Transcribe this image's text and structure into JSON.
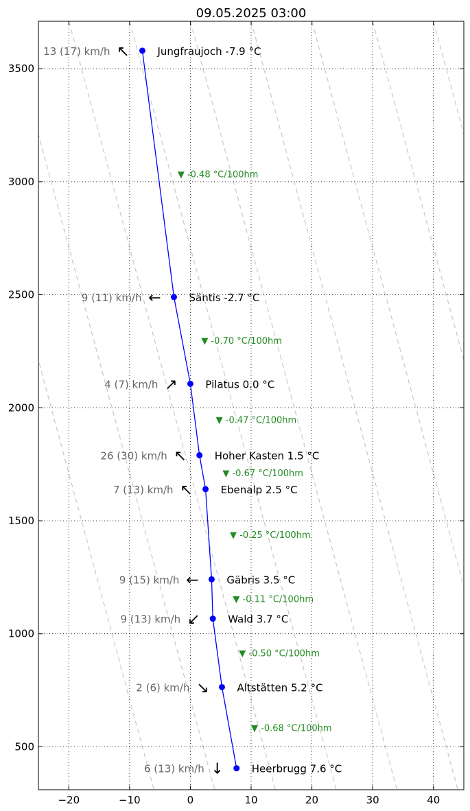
{
  "chart_data": {
    "type": "line",
    "title": "09.05.2025 03:00",
    "xlabel": "",
    "ylabel": "",
    "xlim": [
      -25,
      45
    ],
    "ylim": [
      310,
      3710
    ],
    "xticks": [
      -20,
      -10,
      0,
      10,
      20,
      30,
      40
    ],
    "yticks": [
      500,
      1000,
      1500,
      2000,
      2500,
      3000,
      3500
    ],
    "grid": true,
    "series": [
      {
        "color": "#0000ff",
        "points": [
          {
            "station": "Heerbrugg",
            "temp": 7.6,
            "alt": 405,
            "label": "Heerbrugg 7.6 °C",
            "wind": "6 (13) km/h",
            "arrow": "↓"
          },
          {
            "station": "Altstätten",
            "temp": 5.2,
            "alt": 764,
            "label": "Altstätten 5.2 °C",
            "wind": "2 (6) km/h",
            "arrow": "↘"
          },
          {
            "station": "Wald",
            "temp": 3.7,
            "alt": 1067,
            "label": "Wald 3.7 °C",
            "wind": "9 (13) km/h",
            "arrow": "↙"
          },
          {
            "station": "Gäbris",
            "temp": 3.5,
            "alt": 1241,
            "label": "Gäbris 3.5 °C",
            "wind": "9 (15) km/h",
            "arrow": "←"
          },
          {
            "station": "Ebenalp",
            "temp": 2.5,
            "alt": 1640,
            "label": "Ebenalp 2.5 °C",
            "wind": "7 (13) km/h",
            "arrow": "↖"
          },
          {
            "station": "Hoher Kasten",
            "temp": 1.5,
            "alt": 1790,
            "label": "Hoher Kasten 1.5 °C",
            "wind": "26 (30) km/h",
            "arrow": "↖"
          },
          {
            "station": "Pilatus",
            "temp": 0.0,
            "alt": 2106,
            "label": "Pilatus 0.0 °C",
            "wind": "4 (7) km/h",
            "arrow": "↗"
          },
          {
            "station": "Säntis",
            "temp": -2.7,
            "alt": 2490,
            "label": "Säntis -2.7 °C",
            "wind": "9 (11) km/h",
            "arrow": "←"
          },
          {
            "station": "Jungfraujoch",
            "temp": -7.9,
            "alt": 3580,
            "label": "Jungfraujoch -7.9 °C",
            "wind": "13 (17) km/h",
            "arrow": "↖"
          }
        ]
      }
    ],
    "lapse_rates": [
      {
        "temp": 10.0,
        "alt": 585,
        "text": "▼ -0.68 °C/100hm"
      },
      {
        "temp": 8.0,
        "alt": 915,
        "text": "▼ -0.50 °C/100hm"
      },
      {
        "temp": 7.0,
        "alt": 1155,
        "text": "▼ -0.11 °C/100hm"
      },
      {
        "temp": 6.5,
        "alt": 1440,
        "text": "▼ -0.25 °C/100hm"
      },
      {
        "temp": 5.3,
        "alt": 1712,
        "text": "▼ -0.67 °C/100hm"
      },
      {
        "temp": 4.2,
        "alt": 1948,
        "text": "▼ -0.47 °C/100hm"
      },
      {
        "temp": 1.8,
        "alt": 2298,
        "text": "▼ -0.70 °C/100hm"
      },
      {
        "temp": -2.1,
        "alt": 3035,
        "text": "▼ -0.48 °C/100hm"
      }
    ],
    "dry_adiabats": [
      {
        "t_top": -20,
        "t_bottom": 14
      },
      {
        "t_top": -10,
        "t_bottom": 24
      },
      {
        "t_top": 0,
        "t_bottom": 34
      },
      {
        "t_top": 10,
        "t_bottom": 44
      },
      {
        "t_top": 20,
        "t_bottom": 54
      },
      {
        "t_top": 30,
        "t_bottom": 64
      },
      {
        "t_top": 40,
        "t_bottom": 74
      },
      {
        "t_top": 50,
        "t_bottom": 84
      },
      {
        "t_top": -30,
        "t_bottom": 4
      },
      {
        "t_top": -40,
        "t_bottom": -6
      }
    ],
    "colors": {
      "line": "#0000ff",
      "marker": "#0000ff",
      "lapse_text": "#228B22",
      "wind_text": "#666666",
      "grid": "#000000",
      "adiabat": "#c8c8c8"
    }
  }
}
